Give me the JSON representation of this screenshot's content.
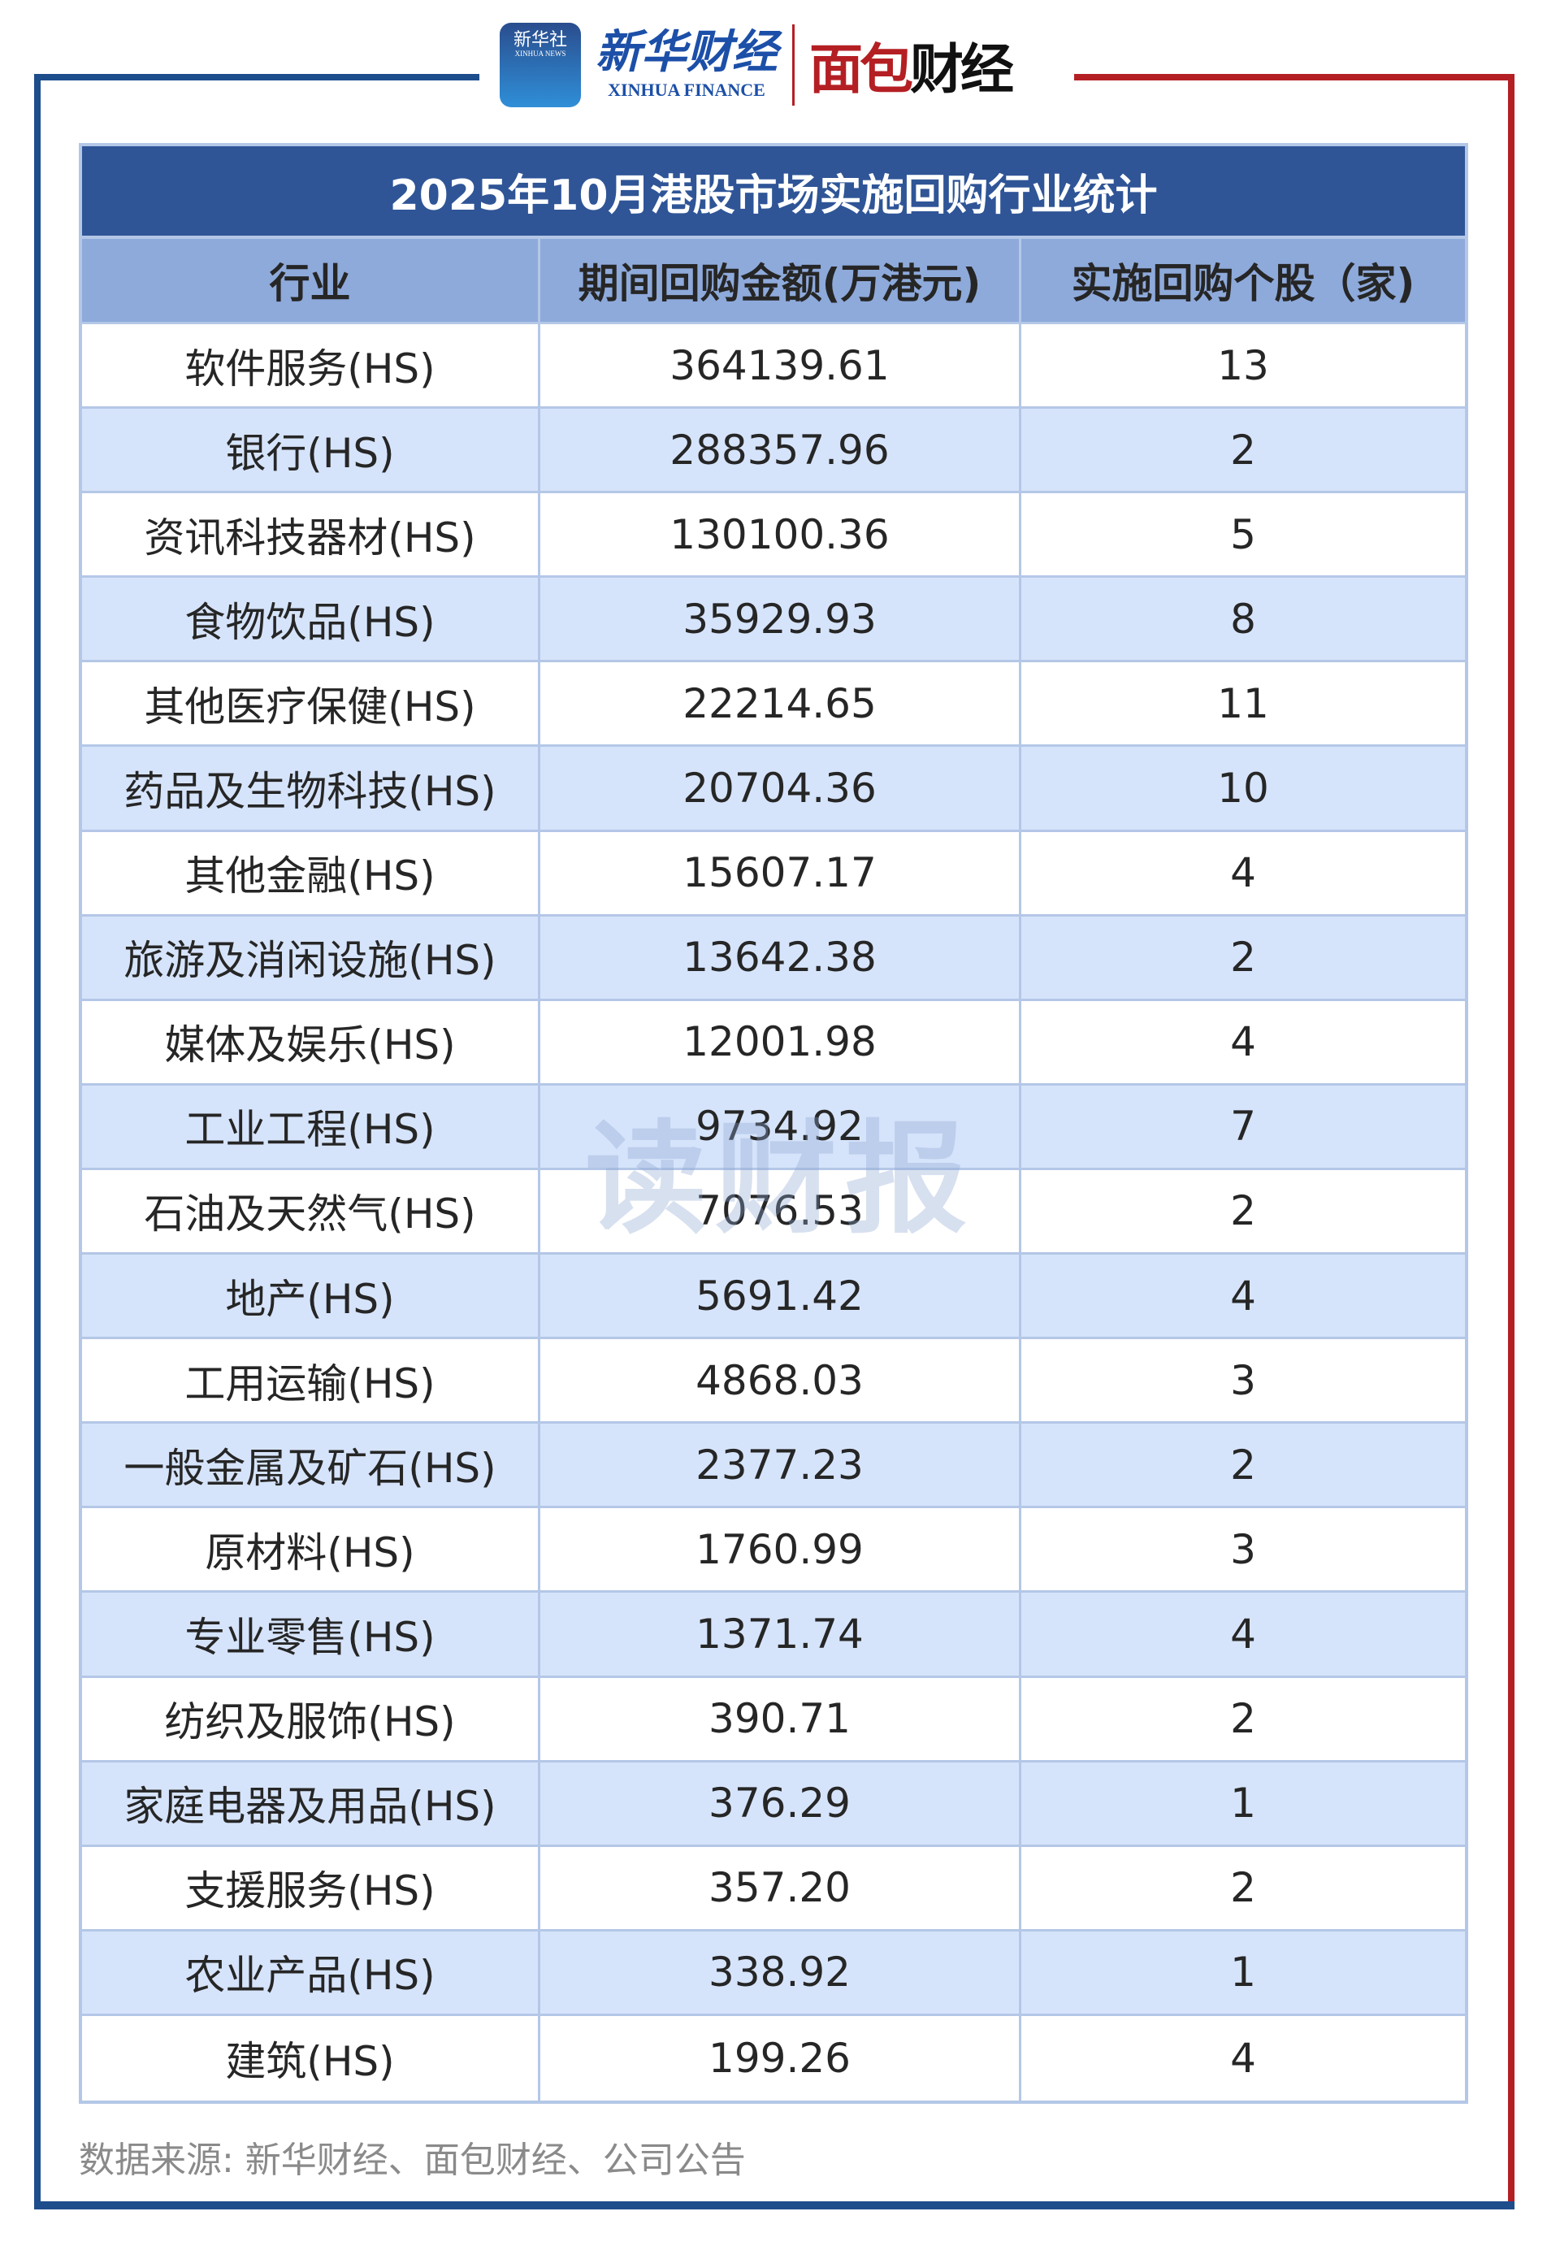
{
  "logos": {
    "xinhua_badge": "新华社",
    "xinhua_badge_en": "XINHUA NEWS",
    "xinhua_finance_cn": "新华财经",
    "xinhua_finance_en": "XINHUA FINANCE",
    "mianbao_part1": "面包",
    "mianbao_part2": "财经"
  },
  "colors": {
    "title_bg": "#2f5597",
    "header_bg": "#8eaadb",
    "alt_row": "#d6e4fb",
    "frame_blue": "#1e4d8c",
    "frame_red": "#b41f24"
  },
  "table": {
    "title": "2025年10月港股市场实施回购行业统计",
    "headers": [
      "行业",
      "期间回购金额(万港元)",
      "实施回购个股（家)"
    ],
    "rows": [
      [
        "软件服务(HS)",
        "364139.61",
        "13"
      ],
      [
        "银行(HS)",
        "288357.96",
        "2"
      ],
      [
        "资讯科技器材(HS)",
        "130100.36",
        "5"
      ],
      [
        "食物饮品(HS)",
        "35929.93",
        "8"
      ],
      [
        "其他医疗保健(HS)",
        "22214.65",
        "11"
      ],
      [
        "药品及生物科技(HS)",
        "20704.36",
        "10"
      ],
      [
        "其他金融(HS)",
        "15607.17",
        "4"
      ],
      [
        "旅游及消闲设施(HS)",
        "13642.38",
        "2"
      ],
      [
        "媒体及娱乐(HS)",
        "12001.98",
        "4"
      ],
      [
        "工业工程(HS)",
        "9734.92",
        "7"
      ],
      [
        "石油及天然气(HS)",
        "7076.53",
        "2"
      ],
      [
        "地产(HS)",
        "5691.42",
        "4"
      ],
      [
        "工用运输(HS)",
        "4868.03",
        "3"
      ],
      [
        "一般金属及矿石(HS)",
        "2377.23",
        "2"
      ],
      [
        "原材料(HS)",
        "1760.99",
        "3"
      ],
      [
        "专业零售(HS)",
        "1371.74",
        "4"
      ],
      [
        "纺织及服饰(HS)",
        "390.71",
        "2"
      ],
      [
        "家庭电器及用品(HS)",
        "376.29",
        "1"
      ],
      [
        "支援服务(HS)",
        "357.20",
        "2"
      ],
      [
        "农业产品(HS)",
        "338.92",
        "1"
      ],
      [
        "建筑(HS)",
        "199.26",
        "4"
      ]
    ]
  },
  "watermark": "读财报",
  "source": "数据来源: 新华财经、面包财经、公司公告"
}
